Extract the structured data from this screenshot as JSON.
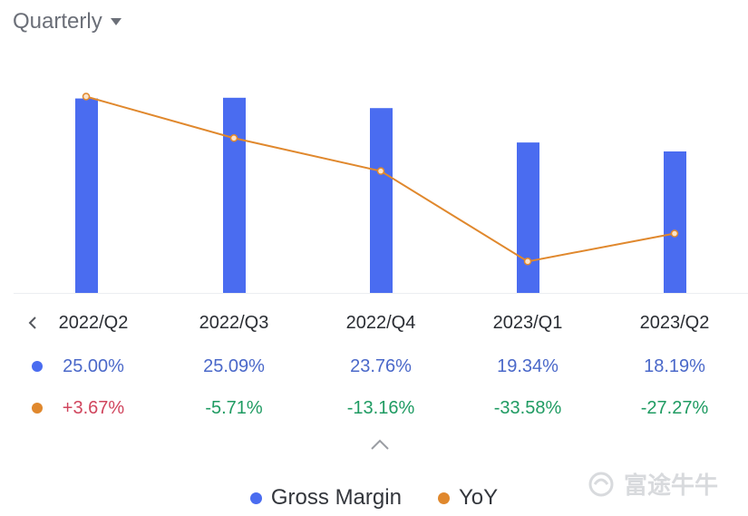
{
  "period_selector": {
    "label": "Quarterly",
    "icon": "caret-down-icon"
  },
  "watermark": "富途牛牛",
  "colors": {
    "bar": "#4a6cf0",
    "line": "#e0882d",
    "positive": "#d0455d",
    "negative": "#1f9b62",
    "gm_text": "#4a68c9"
  },
  "chart_data": {
    "type": "bar",
    "categories": [
      "2022/Q2",
      "2022/Q3",
      "2022/Q4",
      "2023/Q1",
      "2023/Q2"
    ],
    "series": [
      {
        "name": "Gross Margin",
        "type": "bar",
        "values": [
          25.0,
          25.09,
          23.76,
          19.34,
          18.19
        ],
        "labels": [
          "25.00%",
          "25.09%",
          "23.76%",
          "19.34%",
          "18.19%"
        ]
      },
      {
        "name": "YoY",
        "type": "line",
        "values": [
          3.67,
          -5.71,
          -13.16,
          -33.58,
          -27.27
        ],
        "labels": [
          "+3.67%",
          "-5.71%",
          "-13.16%",
          "-33.58%",
          "-27.27%"
        ]
      }
    ],
    "bar_range": [
      0,
      26
    ],
    "line_range": [
      -37,
      5
    ],
    "grid": false,
    "legend": "bottom-center"
  }
}
